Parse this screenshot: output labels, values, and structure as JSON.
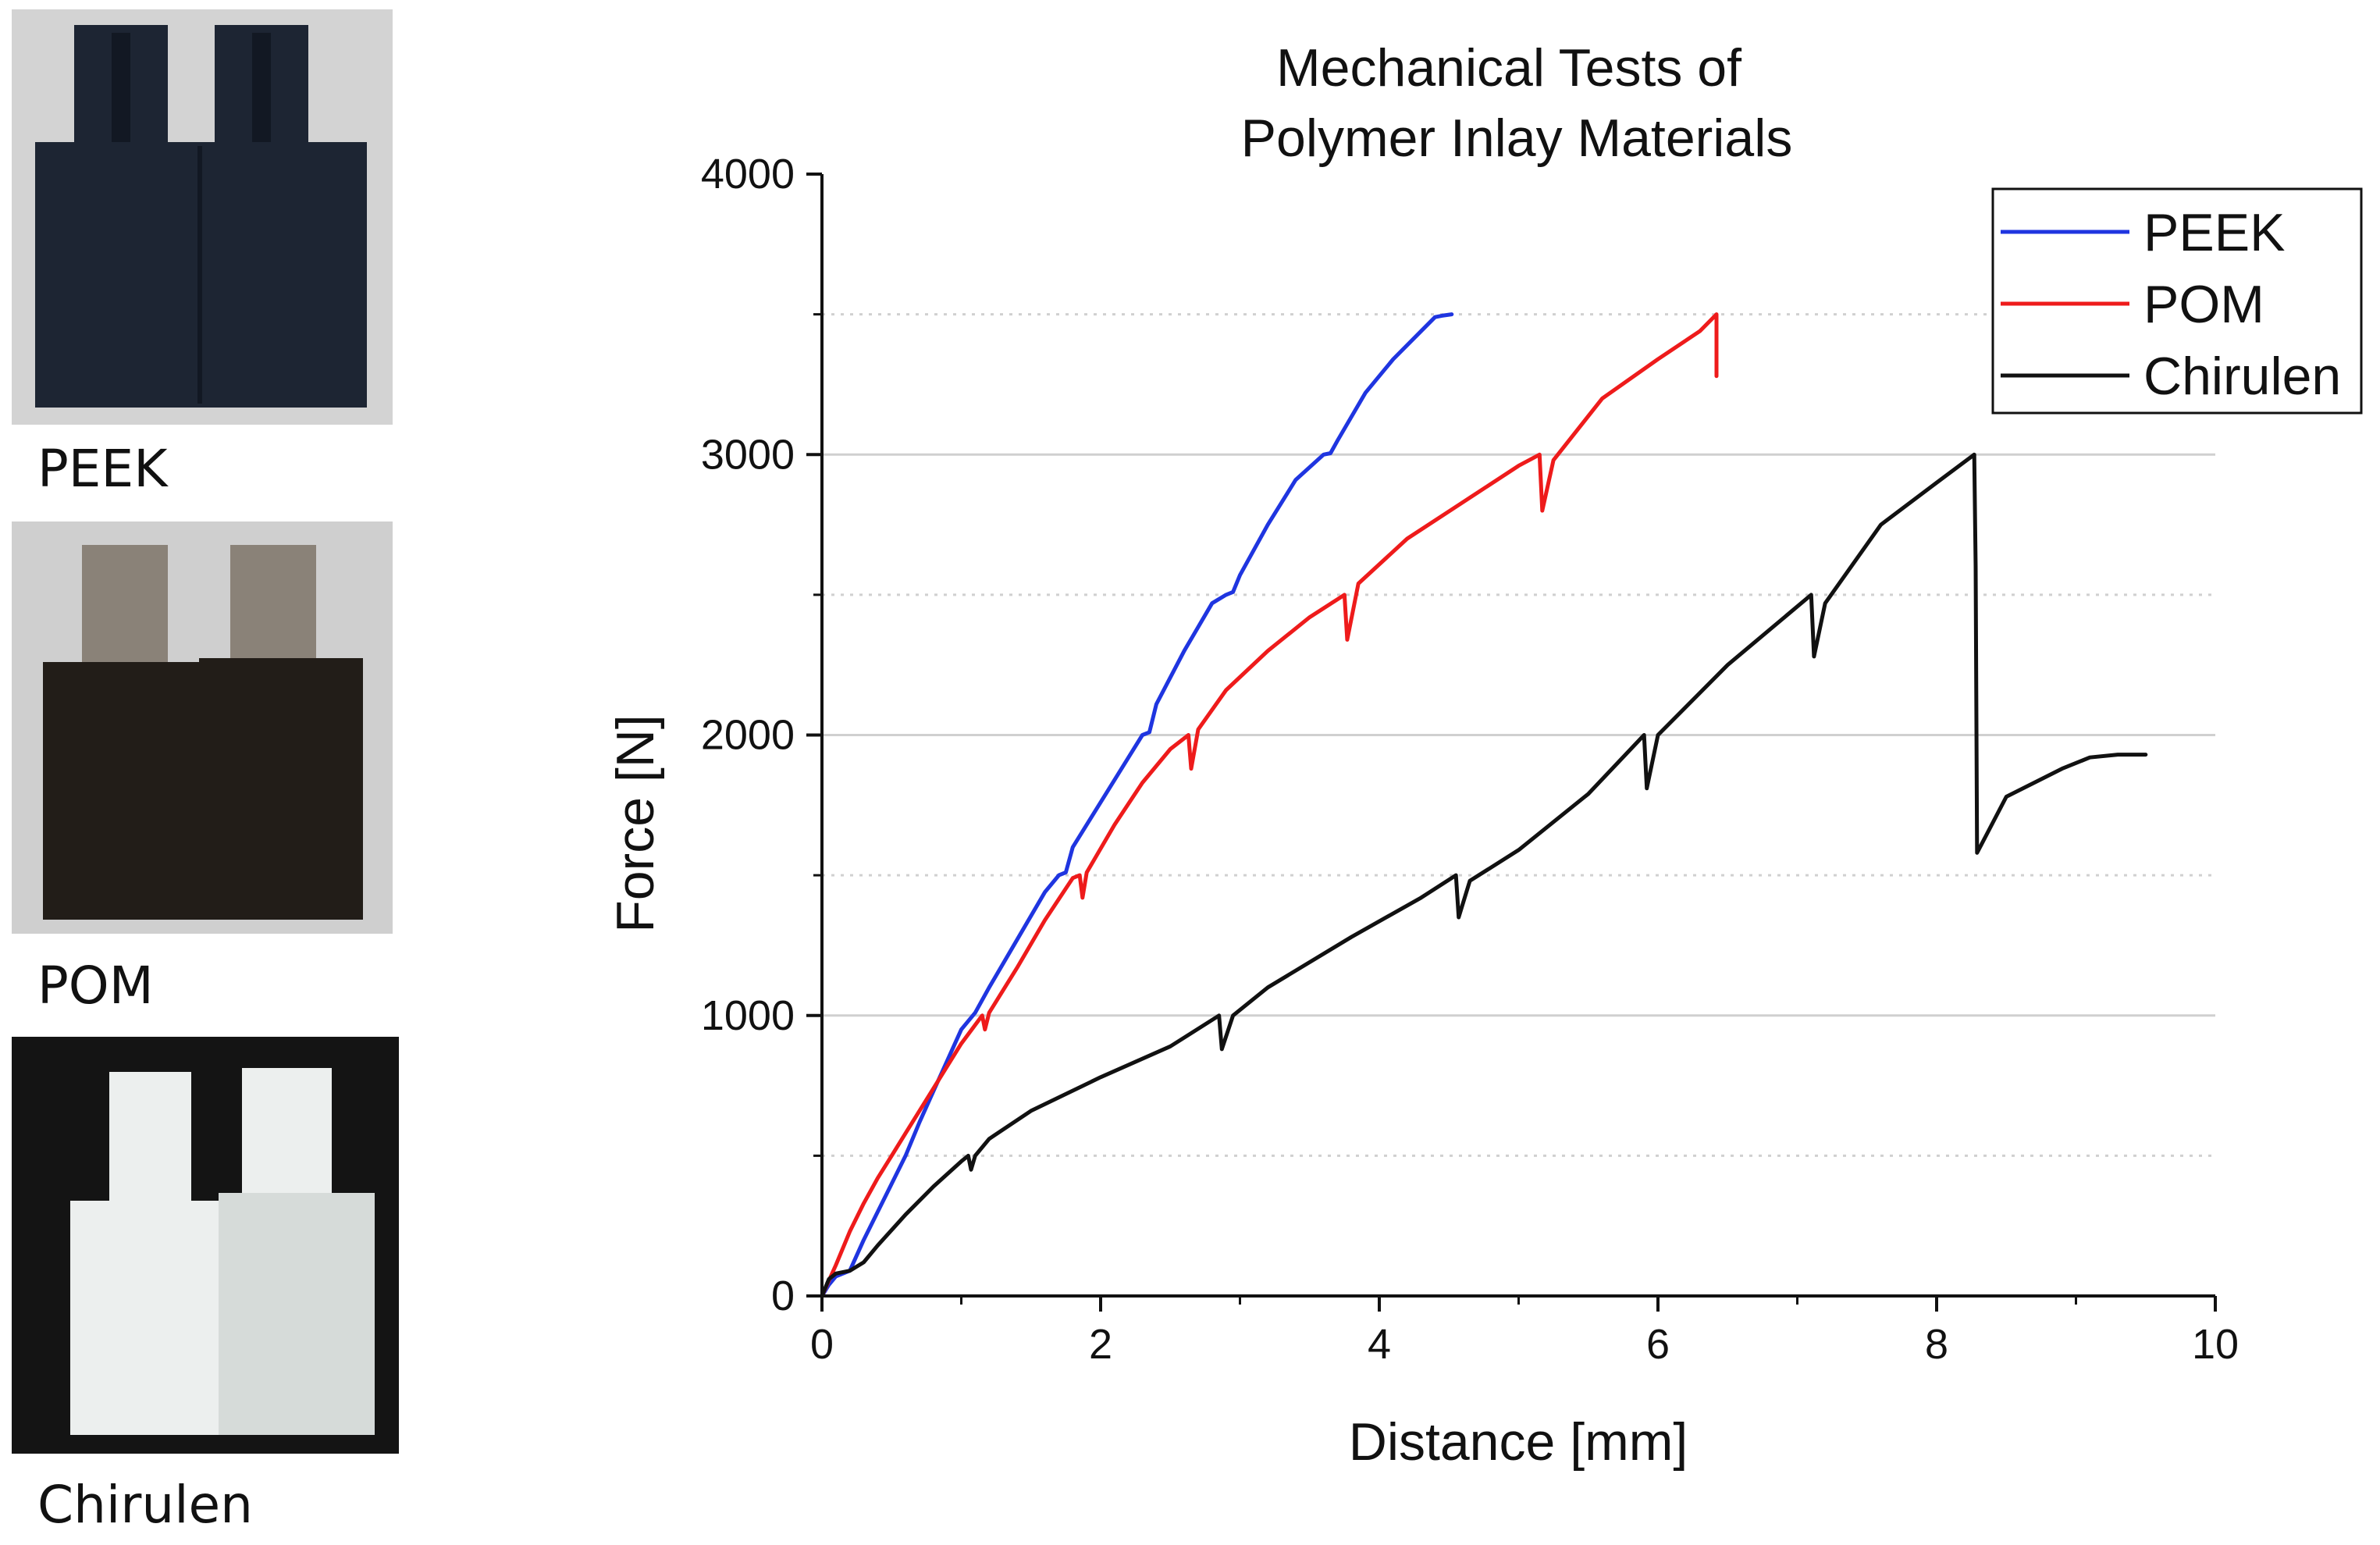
{
  "photos": [
    {
      "label": "PEEK",
      "material": "PEEK",
      "colors": {
        "background": "#d3d3d3",
        "body": "#1d2533",
        "shade": "#121823"
      }
    },
    {
      "label": "POM",
      "material": "POM",
      "colors": {
        "background": "#cfcfcf",
        "body": "#221d18",
        "pin": "#8a8278"
      }
    },
    {
      "label": "Chirulen",
      "material": "Chirulen",
      "colors": {
        "background": "#141414",
        "body": "#ecefee",
        "shade": "#d6dbd9"
      }
    }
  ],
  "chart_data": {
    "type": "line",
    "title": [
      "Mechanical Tests of",
      "Polymer Inlay Materials"
    ],
    "xlabel": "Distance [mm]",
    "ylabel": "Force [N]",
    "xlim": [
      0,
      10
    ],
    "ylim": [
      0,
      4000
    ],
    "xticks": [
      "0",
      "2",
      "4",
      "6",
      "8",
      "10"
    ],
    "xtick_values": [
      0,
      2,
      4,
      6,
      8,
      10
    ],
    "yticks": [
      "0",
      "1000",
      "2000",
      "3000",
      "4000"
    ],
    "ytick_values": [
      0,
      1000,
      2000,
      3000,
      4000
    ],
    "grid": {
      "major_y": [
        1000,
        2000,
        3000
      ],
      "minor_y_dotted": [
        500,
        1500,
        2500,
        3500
      ]
    },
    "legend_position": "top-right",
    "series": [
      {
        "name": "PEEK",
        "color": "#1f35e0",
        "x": [
          0,
          0.05,
          0.1,
          0.2,
          0.3,
          0.4,
          0.5,
          0.6,
          0.7,
          0.8,
          0.9,
          1.0,
          1.1,
          1.2,
          1.4,
          1.6,
          1.7,
          1.75,
          1.8,
          2.0,
          2.2,
          2.3,
          2.35,
          2.4,
          2.6,
          2.8,
          2.9,
          2.95,
          3.0,
          3.2,
          3.4,
          3.6,
          3.65,
          3.7,
          3.9,
          4.1,
          4.3,
          4.4,
          4.45,
          4.52
        ],
        "y": [
          0,
          40,
          70,
          90,
          200,
          300,
          400,
          500,
          620,
          730,
          840,
          950,
          1010,
          1100,
          1270,
          1440,
          1500,
          1510,
          1600,
          1760,
          1920,
          2000,
          2010,
          2110,
          2300,
          2470,
          2500,
          2510,
          2570,
          2750,
          2910,
          3000,
          3005,
          3050,
          3220,
          3340,
          3440,
          3490,
          3495,
          3500
        ]
      },
      {
        "name": "POM",
        "color": "#ee1b1b",
        "x": [
          0,
          0.1,
          0.2,
          0.3,
          0.4,
          0.5,
          0.6,
          0.8,
          1.0,
          1.15,
          1.17,
          1.2,
          1.4,
          1.6,
          1.8,
          1.85,
          1.87,
          1.9,
          2.1,
          2.3,
          2.5,
          2.63,
          2.65,
          2.7,
          2.9,
          3.2,
          3.5,
          3.75,
          3.77,
          3.85,
          4.2,
          4.6,
          5.0,
          5.15,
          5.17,
          5.25,
          5.6,
          6.0,
          6.3,
          6.42,
          6.42
        ],
        "y": [
          0,
          110,
          230,
          330,
          420,
          500,
          580,
          740,
          900,
          1000,
          950,
          1010,
          1170,
          1340,
          1490,
          1500,
          1420,
          1510,
          1680,
          1830,
          1950,
          2000,
          1880,
          2020,
          2160,
          2300,
          2420,
          2500,
          2340,
          2540,
          2700,
          2830,
          2960,
          3000,
          2800,
          2980,
          3200,
          3340,
          3440,
          3500,
          3280
        ]
      },
      {
        "name": "Chirulen",
        "color": "#111111",
        "x": [
          0,
          0.05,
          0.1,
          0.2,
          0.3,
          0.4,
          0.6,
          0.8,
          1.0,
          1.05,
          1.07,
          1.1,
          1.2,
          1.5,
          2.0,
          2.5,
          2.85,
          2.87,
          2.95,
          3.2,
          3.8,
          4.3,
          4.55,
          4.57,
          4.65,
          5.0,
          5.5,
          5.9,
          5.92,
          6.0,
          6.5,
          7.1,
          7.12,
          7.2,
          7.6,
          8.0,
          8.27,
          8.28,
          8.29,
          8.5,
          8.7,
          8.9,
          9.1,
          9.3,
          9.5
        ],
        "y": [
          0,
          60,
          80,
          90,
          120,
          180,
          290,
          390,
          480,
          500,
          450,
          500,
          560,
          660,
          780,
          890,
          1000,
          880,
          1000,
          1100,
          1280,
          1420,
          1500,
          1350,
          1480,
          1590,
          1790,
          2000,
          1810,
          2000,
          2250,
          2500,
          2280,
          2470,
          2750,
          2900,
          3000,
          2600,
          1580,
          1780,
          1830,
          1880,
          1920,
          1930,
          1930
        ]
      }
    ]
  }
}
